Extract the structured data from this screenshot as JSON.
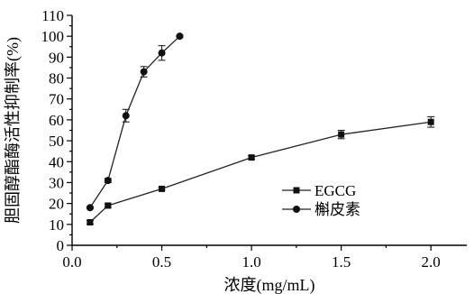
{
  "chart_data": {
    "type": "line",
    "xlabel": "浓度(mg/mL)",
    "ylabel": "胆固醇酯酶活性抑制率(%)",
    "xlim": [
      0.0,
      2.2
    ],
    "ylim": [
      0,
      110
    ],
    "x_ticks": [
      "0.0",
      "0.5",
      "1.0",
      "1.5",
      "2.0"
    ],
    "y_ticks": [
      "0",
      "10",
      "20",
      "30",
      "40",
      "50",
      "60",
      "70",
      "80",
      "90",
      "100",
      "110"
    ],
    "legend_position": "center-right",
    "series": [
      {
        "name": "EGCG",
        "marker": "square",
        "points": [
          {
            "x": 0.1,
            "y": 11,
            "err": 0.8
          },
          {
            "x": 0.2,
            "y": 19,
            "err": 0.8
          },
          {
            "x": 0.5,
            "y": 27,
            "err": 0.6
          },
          {
            "x": 1.0,
            "y": 42,
            "err": 0.8
          },
          {
            "x": 1.5,
            "y": 53,
            "err": 2.0
          },
          {
            "x": 2.0,
            "y": 59,
            "err": 2.5
          }
        ]
      },
      {
        "name": "槲皮素",
        "marker": "circle",
        "points": [
          {
            "x": 0.1,
            "y": 18,
            "err": 0.5
          },
          {
            "x": 0.2,
            "y": 31,
            "err": 1.0
          },
          {
            "x": 0.3,
            "y": 62,
            "err": 3.0
          },
          {
            "x": 0.4,
            "y": 83,
            "err": 2.5
          },
          {
            "x": 0.5,
            "y": 92,
            "err": 3.5
          },
          {
            "x": 0.6,
            "y": 100,
            "err": 0.5
          }
        ]
      }
    ]
  }
}
